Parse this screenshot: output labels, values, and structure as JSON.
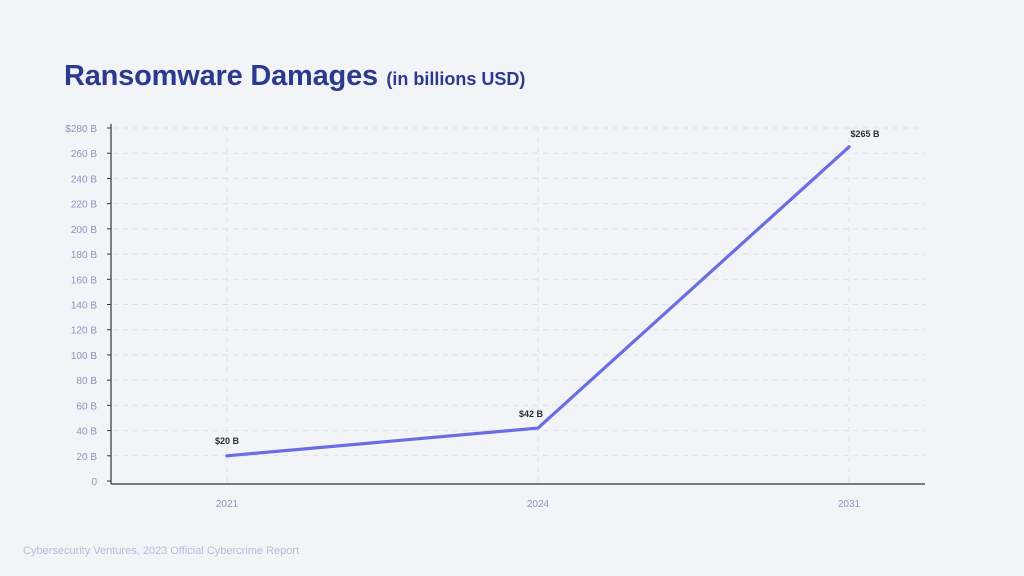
{
  "chart_data": {
    "type": "line",
    "title": "Ransomware Damages",
    "subtitle": "(in billions USD)",
    "categories": [
      "2021",
      "2024",
      "2031"
    ],
    "series": [
      {
        "values": [
          20,
          42,
          265
        ],
        "color": "#6b6ee3"
      }
    ],
    "data_labels": [
      "$20 B",
      "$42 B",
      "$265 B"
    ],
    "y_ticks": [
      0,
      20,
      40,
      60,
      80,
      100,
      120,
      140,
      160,
      180,
      200,
      220,
      240,
      260,
      280
    ],
    "y_tick_labels": [
      "0",
      "20 B",
      "40 B",
      "60 B",
      "80 B",
      "100 B",
      "120 B",
      "140 B",
      "160 B",
      "180 B",
      "200 B",
      "220 B",
      "240 B",
      "260 B",
      "$280 B"
    ],
    "ylim": [
      0,
      280
    ],
    "grid": true,
    "xlabel": "",
    "ylabel": ""
  },
  "source": "Cybersecurity Ventures, 2023 Official Cybercrime Report",
  "colors": {
    "title": "#2b3a8f",
    "line": "#6b6ee3",
    "axis": "#2f3140",
    "grid": "#dcdfe9",
    "tick_text": "#8e94b8",
    "label_text": "#2a2d3c"
  }
}
